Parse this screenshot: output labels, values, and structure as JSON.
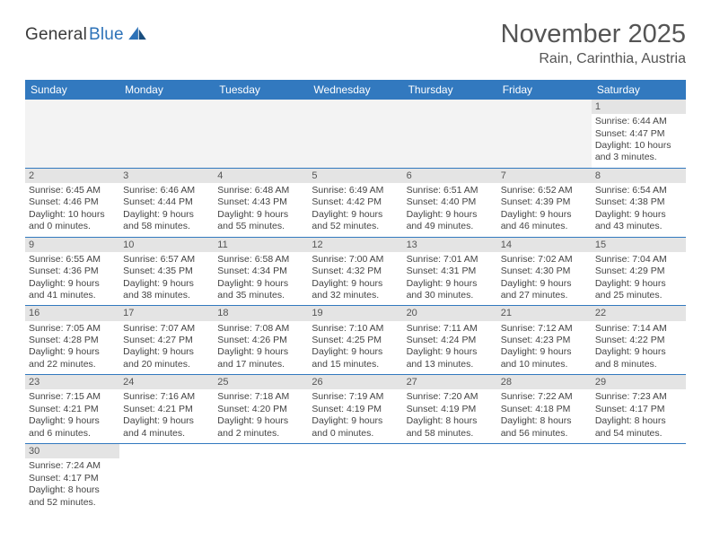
{
  "logo": {
    "general": "General",
    "blue": "Blue"
  },
  "title": "November 2025",
  "location": "Rain, Carinthia, Austria",
  "colors": {
    "header_bg": "#3279bf",
    "header_text": "#ffffff",
    "daynum_bg": "#e4e4e4",
    "border": "#3279bf",
    "text": "#444444",
    "title_text": "#555555"
  },
  "weekdays": [
    "Sunday",
    "Monday",
    "Tuesday",
    "Wednesday",
    "Thursday",
    "Friday",
    "Saturday"
  ],
  "weeks": [
    [
      null,
      null,
      null,
      null,
      null,
      null,
      {
        "n": "1",
        "sr": "Sunrise: 6:44 AM",
        "ss": "Sunset: 4:47 PM",
        "d1": "Daylight: 10 hours",
        "d2": "and 3 minutes."
      }
    ],
    [
      {
        "n": "2",
        "sr": "Sunrise: 6:45 AM",
        "ss": "Sunset: 4:46 PM",
        "d1": "Daylight: 10 hours",
        "d2": "and 0 minutes."
      },
      {
        "n": "3",
        "sr": "Sunrise: 6:46 AM",
        "ss": "Sunset: 4:44 PM",
        "d1": "Daylight: 9 hours",
        "d2": "and 58 minutes."
      },
      {
        "n": "4",
        "sr": "Sunrise: 6:48 AM",
        "ss": "Sunset: 4:43 PM",
        "d1": "Daylight: 9 hours",
        "d2": "and 55 minutes."
      },
      {
        "n": "5",
        "sr": "Sunrise: 6:49 AM",
        "ss": "Sunset: 4:42 PM",
        "d1": "Daylight: 9 hours",
        "d2": "and 52 minutes."
      },
      {
        "n": "6",
        "sr": "Sunrise: 6:51 AM",
        "ss": "Sunset: 4:40 PM",
        "d1": "Daylight: 9 hours",
        "d2": "and 49 minutes."
      },
      {
        "n": "7",
        "sr": "Sunrise: 6:52 AM",
        "ss": "Sunset: 4:39 PM",
        "d1": "Daylight: 9 hours",
        "d2": "and 46 minutes."
      },
      {
        "n": "8",
        "sr": "Sunrise: 6:54 AM",
        "ss": "Sunset: 4:38 PM",
        "d1": "Daylight: 9 hours",
        "d2": "and 43 minutes."
      }
    ],
    [
      {
        "n": "9",
        "sr": "Sunrise: 6:55 AM",
        "ss": "Sunset: 4:36 PM",
        "d1": "Daylight: 9 hours",
        "d2": "and 41 minutes."
      },
      {
        "n": "10",
        "sr": "Sunrise: 6:57 AM",
        "ss": "Sunset: 4:35 PM",
        "d1": "Daylight: 9 hours",
        "d2": "and 38 minutes."
      },
      {
        "n": "11",
        "sr": "Sunrise: 6:58 AM",
        "ss": "Sunset: 4:34 PM",
        "d1": "Daylight: 9 hours",
        "d2": "and 35 minutes."
      },
      {
        "n": "12",
        "sr": "Sunrise: 7:00 AM",
        "ss": "Sunset: 4:32 PM",
        "d1": "Daylight: 9 hours",
        "d2": "and 32 minutes."
      },
      {
        "n": "13",
        "sr": "Sunrise: 7:01 AM",
        "ss": "Sunset: 4:31 PM",
        "d1": "Daylight: 9 hours",
        "d2": "and 30 minutes."
      },
      {
        "n": "14",
        "sr": "Sunrise: 7:02 AM",
        "ss": "Sunset: 4:30 PM",
        "d1": "Daylight: 9 hours",
        "d2": "and 27 minutes."
      },
      {
        "n": "15",
        "sr": "Sunrise: 7:04 AM",
        "ss": "Sunset: 4:29 PM",
        "d1": "Daylight: 9 hours",
        "d2": "and 25 minutes."
      }
    ],
    [
      {
        "n": "16",
        "sr": "Sunrise: 7:05 AM",
        "ss": "Sunset: 4:28 PM",
        "d1": "Daylight: 9 hours",
        "d2": "and 22 minutes."
      },
      {
        "n": "17",
        "sr": "Sunrise: 7:07 AM",
        "ss": "Sunset: 4:27 PM",
        "d1": "Daylight: 9 hours",
        "d2": "and 20 minutes."
      },
      {
        "n": "18",
        "sr": "Sunrise: 7:08 AM",
        "ss": "Sunset: 4:26 PM",
        "d1": "Daylight: 9 hours",
        "d2": "and 17 minutes."
      },
      {
        "n": "19",
        "sr": "Sunrise: 7:10 AM",
        "ss": "Sunset: 4:25 PM",
        "d1": "Daylight: 9 hours",
        "d2": "and 15 minutes."
      },
      {
        "n": "20",
        "sr": "Sunrise: 7:11 AM",
        "ss": "Sunset: 4:24 PM",
        "d1": "Daylight: 9 hours",
        "d2": "and 13 minutes."
      },
      {
        "n": "21",
        "sr": "Sunrise: 7:12 AM",
        "ss": "Sunset: 4:23 PM",
        "d1": "Daylight: 9 hours",
        "d2": "and 10 minutes."
      },
      {
        "n": "22",
        "sr": "Sunrise: 7:14 AM",
        "ss": "Sunset: 4:22 PM",
        "d1": "Daylight: 9 hours",
        "d2": "and 8 minutes."
      }
    ],
    [
      {
        "n": "23",
        "sr": "Sunrise: 7:15 AM",
        "ss": "Sunset: 4:21 PM",
        "d1": "Daylight: 9 hours",
        "d2": "and 6 minutes."
      },
      {
        "n": "24",
        "sr": "Sunrise: 7:16 AM",
        "ss": "Sunset: 4:21 PM",
        "d1": "Daylight: 9 hours",
        "d2": "and 4 minutes."
      },
      {
        "n": "25",
        "sr": "Sunrise: 7:18 AM",
        "ss": "Sunset: 4:20 PM",
        "d1": "Daylight: 9 hours",
        "d2": "and 2 minutes."
      },
      {
        "n": "26",
        "sr": "Sunrise: 7:19 AM",
        "ss": "Sunset: 4:19 PM",
        "d1": "Daylight: 9 hours",
        "d2": "and 0 minutes."
      },
      {
        "n": "27",
        "sr": "Sunrise: 7:20 AM",
        "ss": "Sunset: 4:19 PM",
        "d1": "Daylight: 8 hours",
        "d2": "and 58 minutes."
      },
      {
        "n": "28",
        "sr": "Sunrise: 7:22 AM",
        "ss": "Sunset: 4:18 PM",
        "d1": "Daylight: 8 hours",
        "d2": "and 56 minutes."
      },
      {
        "n": "29",
        "sr": "Sunrise: 7:23 AM",
        "ss": "Sunset: 4:17 PM",
        "d1": "Daylight: 8 hours",
        "d2": "and 54 minutes."
      }
    ],
    [
      {
        "n": "30",
        "sr": "Sunrise: 7:24 AM",
        "ss": "Sunset: 4:17 PM",
        "d1": "Daylight: 8 hours",
        "d2": "and 52 minutes."
      },
      null,
      null,
      null,
      null,
      null,
      null
    ]
  ]
}
